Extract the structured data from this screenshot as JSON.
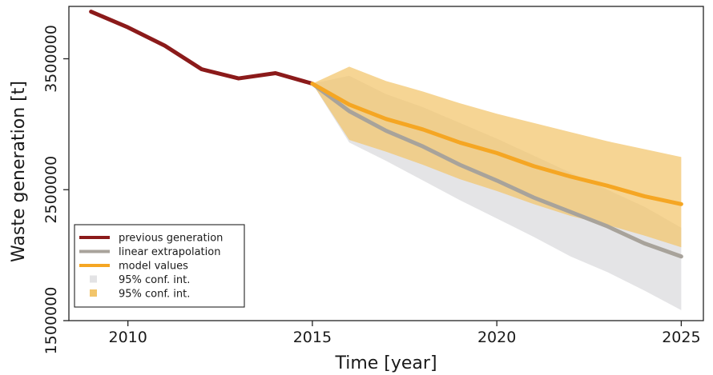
{
  "chart_data": {
    "type": "line",
    "xlabel": "Time [year]",
    "ylabel": "Waste generation [t]",
    "xlim": [
      2008.4,
      2025.6
    ],
    "ylim": [
      1500000,
      3900000
    ],
    "x_ticks": [
      2010,
      2015,
      2020,
      2025
    ],
    "x_tick_labels": [
      "2010",
      "2015",
      "2020",
      "2025"
    ],
    "y_ticks": [
      1500000,
      2500000,
      3500000
    ],
    "y_tick_labels": [
      "1500000",
      "2500000",
      "3500000"
    ],
    "grid": false,
    "legend_position": "bottom-left",
    "series": [
      {
        "name": "previous generation",
        "kind": "line",
        "color": "#8b1a1a",
        "x": [
          2009,
          2010,
          2011,
          2012,
          2013,
          2014,
          2015
        ],
        "y": [
          3860000,
          3740000,
          3600000,
          3420000,
          3350000,
          3390000,
          3310000
        ]
      },
      {
        "name": "linear extrapolation",
        "kind": "line",
        "color": "#a8a39b",
        "x": [
          2015,
          2016,
          2017,
          2018,
          2019,
          2020,
          2021,
          2022,
          2023,
          2024,
          2025
        ],
        "y": [
          3310000,
          3100000,
          2950000,
          2830000,
          2690000,
          2570000,
          2440000,
          2330000,
          2220000,
          2090000,
          1990000
        ]
      },
      {
        "name": "model values",
        "kind": "line",
        "color": "#f5a623",
        "x": [
          2015,
          2016,
          2017,
          2018,
          2019,
          2020,
          2021,
          2022,
          2023,
          2024,
          2025
        ],
        "y": [
          3310000,
          3150000,
          3040000,
          2960000,
          2860000,
          2780000,
          2680000,
          2600000,
          2530000,
          2450000,
          2390000
        ]
      },
      {
        "name": "95% conf. int.",
        "kind": "band",
        "color": "#e3e3e5",
        "x": [
          2015,
          2016,
          2017,
          2018,
          2019,
          2020,
          2021,
          2022,
          2023,
          2024,
          2025
        ],
        "upper": [
          3310000,
          3370000,
          3230000,
          3130000,
          3010000,
          2890000,
          2760000,
          2630000,
          2500000,
          2370000,
          2210000
        ],
        "lower": [
          3310000,
          2860000,
          2720000,
          2570000,
          2420000,
          2280000,
          2140000,
          1990000,
          1870000,
          1730000,
          1580000
        ]
      },
      {
        "name": "95% conf. int.",
        "kind": "band",
        "color": "#f2c56b",
        "x": [
          2015,
          2016,
          2017,
          2018,
          2019,
          2020,
          2021,
          2022,
          2023,
          2024,
          2025
        ],
        "upper": [
          3310000,
          3440000,
          3330000,
          3250000,
          3160000,
          3080000,
          3010000,
          2940000,
          2870000,
          2810000,
          2750000
        ],
        "lower": [
          3310000,
          2880000,
          2790000,
          2690000,
          2580000,
          2490000,
          2390000,
          2300000,
          2230000,
          2150000,
          2060000
        ]
      }
    ]
  }
}
